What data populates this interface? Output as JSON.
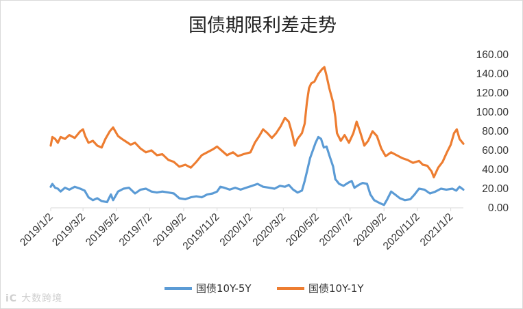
{
  "watermark": {
    "logo": "iC",
    "text": "大数跨境"
  },
  "colors": {
    "series1": "#5b9bd5",
    "series2": "#ed7d31",
    "axis": "#d9d9d9"
  },
  "chart_data": {
    "type": "line",
    "title": "国债期限利差走势",
    "xlabel": "",
    "ylabel": "",
    "ylim": [
      0,
      160
    ],
    "y_ticks": [
      "0.00",
      "20.00",
      "40.00",
      "60.00",
      "80.00",
      "100.00",
      "120.00",
      "140.00",
      "160.00"
    ],
    "y_axis_position": "right",
    "x_ticks": [
      "2019/1/2",
      "2019/3/2",
      "2019/5/2",
      "2019/7/2",
      "2019/9/2",
      "2019/11/2",
      "2020/1/2",
      "2020/3/2",
      "2020/5/2",
      "2020/7/2",
      "2020/9/2",
      "2020/11/2",
      "2021/1/2"
    ],
    "x_range": [
      "2019-01-02",
      "2021-01-25"
    ],
    "grid": false,
    "legend": "bottom",
    "series": [
      {
        "name": "国债10Y-5Y",
        "color": "#5b9bd5",
        "points": [
          [
            "2019-01-02",
            22
          ],
          [
            "2019-01-05",
            25
          ],
          [
            "2019-01-10",
            21
          ],
          [
            "2019-01-15",
            20
          ],
          [
            "2019-01-20",
            17
          ],
          [
            "2019-01-28",
            21
          ],
          [
            "2019-02-05",
            19
          ],
          [
            "2019-02-15",
            22
          ],
          [
            "2019-02-25",
            20
          ],
          [
            "2019-03-05",
            18
          ],
          [
            "2019-03-12",
            11
          ],
          [
            "2019-03-20",
            8
          ],
          [
            "2019-03-28",
            10
          ],
          [
            "2019-04-05",
            7
          ],
          [
            "2019-04-15",
            6
          ],
          [
            "2019-04-22",
            14
          ],
          [
            "2019-04-26",
            8
          ],
          [
            "2019-05-05",
            17
          ],
          [
            "2019-05-15",
            20
          ],
          [
            "2019-05-25",
            21
          ],
          [
            "2019-06-05",
            15
          ],
          [
            "2019-06-15",
            19
          ],
          [
            "2019-06-25",
            20
          ],
          [
            "2019-07-05",
            17
          ],
          [
            "2019-07-15",
            16
          ],
          [
            "2019-07-25",
            17
          ],
          [
            "2019-08-05",
            16
          ],
          [
            "2019-08-15",
            15
          ],
          [
            "2019-08-25",
            10
          ],
          [
            "2019-09-05",
            9
          ],
          [
            "2019-09-15",
            11
          ],
          [
            "2019-09-25",
            12
          ],
          [
            "2019-10-05",
            11
          ],
          [
            "2019-10-15",
            14
          ],
          [
            "2019-10-25",
            15
          ],
          [
            "2019-11-02",
            17
          ],
          [
            "2019-11-08",
            22
          ],
          [
            "2019-11-15",
            21
          ],
          [
            "2019-11-25",
            19
          ],
          [
            "2019-12-05",
            21
          ],
          [
            "2019-12-15",
            19
          ],
          [
            "2019-12-25",
            21
          ],
          [
            "2020-01-05",
            23
          ],
          [
            "2020-01-15",
            25
          ],
          [
            "2020-01-25",
            22
          ],
          [
            "2020-02-05",
            21
          ],
          [
            "2020-02-15",
            20
          ],
          [
            "2020-02-25",
            23
          ],
          [
            "2020-03-05",
            22
          ],
          [
            "2020-03-12",
            24
          ],
          [
            "2020-03-20",
            19
          ],
          [
            "2020-03-28",
            16
          ],
          [
            "2020-04-05",
            18
          ],
          [
            "2020-04-10",
            28
          ],
          [
            "2020-04-15",
            40
          ],
          [
            "2020-04-20",
            52
          ],
          [
            "2020-04-25",
            60
          ],
          [
            "2020-04-30",
            68
          ],
          [
            "2020-05-05",
            74
          ],
          [
            "2020-05-10",
            72
          ],
          [
            "2020-05-15",
            63
          ],
          [
            "2020-05-20",
            64
          ],
          [
            "2020-05-25",
            55
          ],
          [
            "2020-06-01",
            43
          ],
          [
            "2020-06-05",
            30
          ],
          [
            "2020-06-12",
            25
          ],
          [
            "2020-06-20",
            23
          ],
          [
            "2020-06-28",
            26
          ],
          [
            "2020-07-05",
            28
          ],
          [
            "2020-07-10",
            21
          ],
          [
            "2020-07-18",
            24
          ],
          [
            "2020-07-25",
            26
          ],
          [
            "2020-08-02",
            25
          ],
          [
            "2020-08-08",
            14
          ],
          [
            "2020-08-15",
            8
          ],
          [
            "2020-08-25",
            5
          ],
          [
            "2020-09-02",
            3
          ],
          [
            "2020-09-08",
            9
          ],
          [
            "2020-09-15",
            17
          ],
          [
            "2020-09-22",
            14
          ],
          [
            "2020-10-01",
            10
          ],
          [
            "2020-10-10",
            8
          ],
          [
            "2020-10-20",
            9
          ],
          [
            "2020-10-28",
            14
          ],
          [
            "2020-11-05",
            20
          ],
          [
            "2020-11-15",
            19
          ],
          [
            "2020-11-25",
            15
          ],
          [
            "2020-12-05",
            17
          ],
          [
            "2020-12-15",
            20
          ],
          [
            "2020-12-25",
            19
          ],
          [
            "2021-01-05",
            20
          ],
          [
            "2021-01-12",
            18
          ],
          [
            "2021-01-18",
            22
          ],
          [
            "2021-01-25",
            19
          ]
        ]
      },
      {
        "name": "国债10Y-1Y",
        "color": "#ed7d31",
        "points": [
          [
            "2019-01-02",
            65
          ],
          [
            "2019-01-05",
            74
          ],
          [
            "2019-01-10",
            72
          ],
          [
            "2019-01-15",
            68
          ],
          [
            "2019-01-20",
            74
          ],
          [
            "2019-01-28",
            72
          ],
          [
            "2019-02-05",
            76
          ],
          [
            "2019-02-15",
            73
          ],
          [
            "2019-02-25",
            80
          ],
          [
            "2019-03-02",
            82
          ],
          [
            "2019-03-06",
            75
          ],
          [
            "2019-03-12",
            68
          ],
          [
            "2019-03-20",
            70
          ],
          [
            "2019-03-28",
            65
          ],
          [
            "2019-04-05",
            63
          ],
          [
            "2019-04-12",
            72
          ],
          [
            "2019-04-20",
            80
          ],
          [
            "2019-04-26",
            84
          ],
          [
            "2019-05-05",
            75
          ],
          [
            "2019-05-12",
            72
          ],
          [
            "2019-05-20",
            69
          ],
          [
            "2019-05-28",
            66
          ],
          [
            "2019-06-05",
            68
          ],
          [
            "2019-06-15",
            62
          ],
          [
            "2019-06-25",
            58
          ],
          [
            "2019-07-05",
            60
          ],
          [
            "2019-07-15",
            55
          ],
          [
            "2019-07-25",
            56
          ],
          [
            "2019-08-05",
            50
          ],
          [
            "2019-08-15",
            48
          ],
          [
            "2019-08-25",
            43
          ],
          [
            "2019-09-05",
            45
          ],
          [
            "2019-09-15",
            42
          ],
          [
            "2019-09-25",
            48
          ],
          [
            "2019-10-05",
            55
          ],
          [
            "2019-10-15",
            58
          ],
          [
            "2019-10-25",
            61
          ],
          [
            "2019-11-02",
            64
          ],
          [
            "2019-11-10",
            60
          ],
          [
            "2019-11-20",
            55
          ],
          [
            "2019-12-01",
            58
          ],
          [
            "2019-12-10",
            54
          ],
          [
            "2019-12-20",
            56
          ],
          [
            "2020-01-02",
            58
          ],
          [
            "2020-01-10",
            68
          ],
          [
            "2020-01-18",
            75
          ],
          [
            "2020-01-25",
            82
          ],
          [
            "2020-02-02",
            78
          ],
          [
            "2020-02-10",
            73
          ],
          [
            "2020-02-18",
            78
          ],
          [
            "2020-02-26",
            85
          ],
          [
            "2020-03-05",
            94
          ],
          [
            "2020-03-12",
            90
          ],
          [
            "2020-03-18",
            78
          ],
          [
            "2020-03-23",
            65
          ],
          [
            "2020-03-28",
            72
          ],
          [
            "2020-04-05",
            78
          ],
          [
            "2020-04-10",
            88
          ],
          [
            "2020-04-14",
            110
          ],
          [
            "2020-04-18",
            125
          ],
          [
            "2020-04-22",
            130
          ],
          [
            "2020-04-28",
            132
          ],
          [
            "2020-05-05",
            140
          ],
          [
            "2020-05-12",
            145
          ],
          [
            "2020-05-16",
            147
          ],
          [
            "2020-05-20",
            138
          ],
          [
            "2020-05-25",
            125
          ],
          [
            "2020-06-01",
            110
          ],
          [
            "2020-06-05",
            95
          ],
          [
            "2020-06-08",
            78
          ],
          [
            "2020-06-15",
            70
          ],
          [
            "2020-06-22",
            76
          ],
          [
            "2020-06-30",
            68
          ],
          [
            "2020-07-08",
            78
          ],
          [
            "2020-07-14",
            90
          ],
          [
            "2020-07-20",
            80
          ],
          [
            "2020-07-28",
            65
          ],
          [
            "2020-08-04",
            70
          ],
          [
            "2020-08-12",
            80
          ],
          [
            "2020-08-20",
            75
          ],
          [
            "2020-08-28",
            62
          ],
          [
            "2020-09-05",
            54
          ],
          [
            "2020-09-15",
            58
          ],
          [
            "2020-09-25",
            55
          ],
          [
            "2020-10-05",
            52
          ],
          [
            "2020-10-15",
            50
          ],
          [
            "2020-10-25",
            47
          ],
          [
            "2020-11-05",
            49
          ],
          [
            "2020-11-12",
            45
          ],
          [
            "2020-11-20",
            44
          ],
          [
            "2020-11-28",
            38
          ],
          [
            "2020-12-02",
            32
          ],
          [
            "2020-12-10",
            42
          ],
          [
            "2020-12-18",
            48
          ],
          [
            "2020-12-26",
            58
          ],
          [
            "2021-01-02",
            66
          ],
          [
            "2021-01-08",
            78
          ],
          [
            "2021-01-13",
            82
          ],
          [
            "2021-01-18",
            72
          ],
          [
            "2021-01-25",
            67
          ]
        ]
      }
    ]
  }
}
